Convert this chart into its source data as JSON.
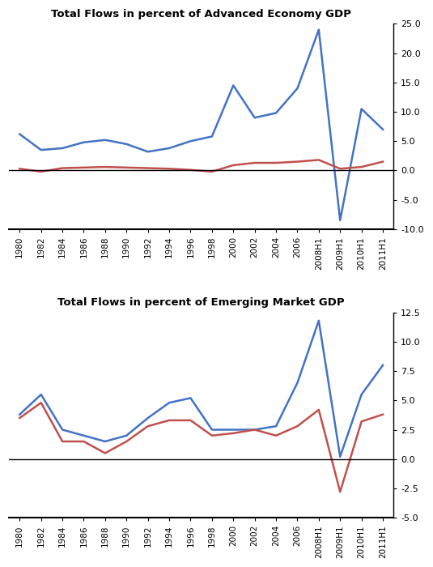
{
  "title1": "Total Flows in percent of Advanced Economy GDP",
  "title2": "Total Flows in percent of Emerging Market GDP",
  "blue_color": "#4472C4",
  "red_color": "#C0504D",
  "bg_color": "#FFFFFF",
  "labels": [
    "1980",
    "1982",
    "1984",
    "1986",
    "1988",
    "1990",
    "1992",
    "1994",
    "1996",
    "1998",
    "2000",
    "2002",
    "2004",
    "2006",
    "2008H1",
    "2009H1",
    "2010H1",
    "2011H1"
  ],
  "adv_blue": [
    6.2,
    3.5,
    3.8,
    4.8,
    5.2,
    4.5,
    3.2,
    3.8,
    5.0,
    5.8,
    14.5,
    9.0,
    9.8,
    14.0,
    24.0,
    -8.5,
    10.5,
    7.0
  ],
  "adv_red": [
    0.3,
    -0.2,
    0.4,
    0.5,
    0.6,
    0.5,
    0.4,
    0.3,
    0.1,
    -0.2,
    0.9,
    1.3,
    1.3,
    1.5,
    1.8,
    0.3,
    0.6,
    1.5
  ],
  "em_blue": [
    3.8,
    5.5,
    2.5,
    2.0,
    1.5,
    2.0,
    3.5,
    4.8,
    5.2,
    2.5,
    2.5,
    2.5,
    2.8,
    6.5,
    11.8,
    0.2,
    5.5,
    8.0
  ],
  "em_red": [
    3.5,
    4.8,
    1.5,
    1.5,
    0.5,
    1.5,
    2.8,
    3.3,
    3.3,
    2.0,
    2.2,
    2.5,
    2.0,
    2.8,
    4.2,
    -2.8,
    3.2,
    3.8
  ],
  "adv_ylim": [
    -10.0,
    25.0
  ],
  "adv_yticks": [
    -10.0,
    -5.0,
    0.0,
    5.0,
    10.0,
    15.0,
    20.0,
    25.0
  ],
  "em_ylim": [
    -5.0,
    12.5
  ],
  "em_yticks": [
    -5.0,
    -2.5,
    0.0,
    2.5,
    5.0,
    7.5,
    10.0,
    12.5
  ]
}
